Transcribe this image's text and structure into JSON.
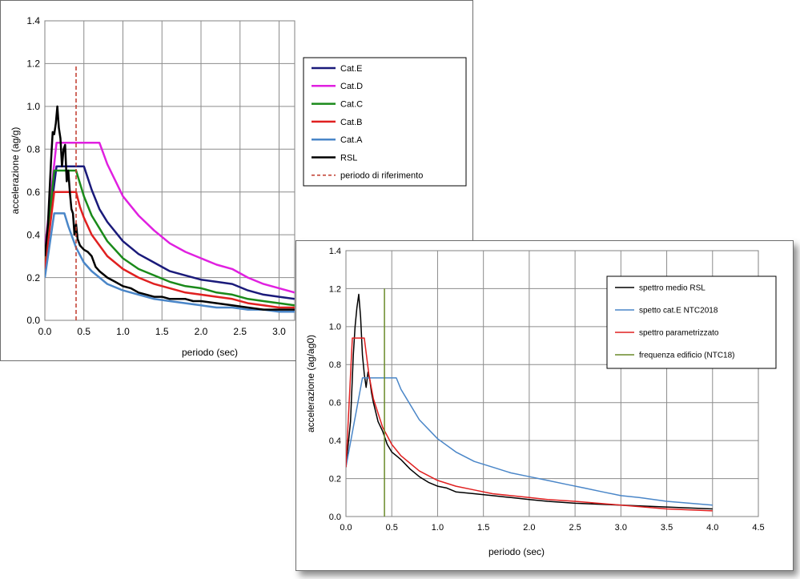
{
  "chart_data": [
    {
      "type": "line",
      "title": "",
      "xlabel": "periodo (sec)",
      "ylabel": "accelerazione (ag/g)",
      "xlim": [
        0,
        3.2
      ],
      "ylim": [
        0,
        1.4
      ],
      "x_ticks": [
        "0.0",
        "0.5",
        "1.0",
        "1.5",
        "2.0",
        "2.5",
        "3.0"
      ],
      "y_ticks": [
        "0.0",
        "0.2",
        "0.4",
        "0.6",
        "0.8",
        "1.0",
        "1.2",
        "1.4"
      ],
      "grid": true,
      "legend_position": "top-right",
      "series": [
        {
          "name": "Cat.E",
          "color": "#1a1a7a",
          "dash": false,
          "points": [
            [
              0,
              0.29
            ],
            [
              0.15,
              0.72
            ],
            [
              0.2,
              0.72
            ],
            [
              0.3,
              0.72
            ],
            [
              0.4,
              0.72
            ],
            [
              0.5,
              0.72
            ],
            [
              0.6,
              0.61
            ],
            [
              0.7,
              0.52
            ],
            [
              0.8,
              0.46
            ],
            [
              1.0,
              0.37
            ],
            [
              1.2,
              0.31
            ],
            [
              1.4,
              0.27
            ],
            [
              1.6,
              0.23
            ],
            [
              1.8,
              0.21
            ],
            [
              2.0,
              0.19
            ],
            [
              2.2,
              0.18
            ],
            [
              2.4,
              0.17
            ],
            [
              2.6,
              0.14
            ],
            [
              2.8,
              0.12
            ],
            [
              3.0,
              0.11
            ],
            [
              3.2,
              0.1
            ]
          ]
        },
        {
          "name": "Cat.D",
          "color": "#e020e0",
          "dash": false,
          "points": [
            [
              0,
              0.33
            ],
            [
              0.15,
              0.83
            ],
            [
              0.2,
              0.83
            ],
            [
              0.4,
              0.83
            ],
            [
              0.5,
              0.83
            ],
            [
              0.6,
              0.83
            ],
            [
              0.7,
              0.83
            ],
            [
              0.8,
              0.73
            ],
            [
              1.0,
              0.58
            ],
            [
              1.2,
              0.49
            ],
            [
              1.4,
              0.42
            ],
            [
              1.6,
              0.36
            ],
            [
              1.8,
              0.32
            ],
            [
              2.0,
              0.29
            ],
            [
              2.2,
              0.26
            ],
            [
              2.4,
              0.24
            ],
            [
              2.6,
              0.2
            ],
            [
              2.8,
              0.17
            ],
            [
              3.0,
              0.15
            ],
            [
              3.2,
              0.13
            ]
          ]
        },
        {
          "name": "Cat.C",
          "color": "#1a8a1a",
          "dash": false,
          "points": [
            [
              0,
              0.28
            ],
            [
              0.12,
              0.7
            ],
            [
              0.2,
              0.7
            ],
            [
              0.3,
              0.7
            ],
            [
              0.4,
              0.7
            ],
            [
              0.5,
              0.58
            ],
            [
              0.6,
              0.49
            ],
            [
              0.8,
              0.37
            ],
            [
              1.0,
              0.29
            ],
            [
              1.2,
              0.24
            ],
            [
              1.4,
              0.21
            ],
            [
              1.6,
              0.18
            ],
            [
              1.8,
              0.16
            ],
            [
              2.0,
              0.15
            ],
            [
              2.2,
              0.13
            ],
            [
              2.4,
              0.12
            ],
            [
              2.6,
              0.1
            ],
            [
              2.8,
              0.09
            ],
            [
              3.0,
              0.08
            ],
            [
              3.2,
              0.07
            ]
          ]
        },
        {
          "name": "Cat.B",
          "color": "#e02020",
          "dash": false,
          "points": [
            [
              0,
              0.24
            ],
            [
              0.12,
              0.6
            ],
            [
              0.2,
              0.6
            ],
            [
              0.3,
              0.6
            ],
            [
              0.4,
              0.6
            ],
            [
              0.45,
              0.53
            ],
            [
              0.5,
              0.48
            ],
            [
              0.6,
              0.4
            ],
            [
              0.8,
              0.3
            ],
            [
              1.0,
              0.24
            ],
            [
              1.2,
              0.2
            ],
            [
              1.4,
              0.17
            ],
            [
              1.6,
              0.15
            ],
            [
              1.8,
              0.13
            ],
            [
              2.0,
              0.12
            ],
            [
              2.2,
              0.11
            ],
            [
              2.4,
              0.1
            ],
            [
              2.6,
              0.08
            ],
            [
              2.8,
              0.07
            ],
            [
              3.0,
              0.06
            ],
            [
              3.2,
              0.06
            ]
          ]
        },
        {
          "name": "Cat.A",
          "color": "#4a86c8",
          "dash": false,
          "points": [
            [
              0,
              0.2
            ],
            [
              0.12,
              0.5
            ],
            [
              0.2,
              0.5
            ],
            [
              0.25,
              0.5
            ],
            [
              0.3,
              0.44
            ],
            [
              0.4,
              0.34
            ],
            [
              0.5,
              0.27
            ],
            [
              0.6,
              0.23
            ],
            [
              0.8,
              0.17
            ],
            [
              1.0,
              0.14
            ],
            [
              1.2,
              0.12
            ],
            [
              1.4,
              0.1
            ],
            [
              1.6,
              0.09
            ],
            [
              1.8,
              0.08
            ],
            [
              2.0,
              0.07
            ],
            [
              2.2,
              0.06
            ],
            [
              2.4,
              0.06
            ],
            [
              2.6,
              0.05
            ],
            [
              2.8,
              0.05
            ],
            [
              3.0,
              0.04
            ],
            [
              3.2,
              0.04
            ]
          ]
        },
        {
          "name": "RSL",
          "color": "#000000",
          "dash": false,
          "points": [
            [
              0,
              0.3
            ],
            [
              0.04,
              0.45
            ],
            [
              0.08,
              0.75
            ],
            [
              0.1,
              0.88
            ],
            [
              0.12,
              0.87
            ],
            [
              0.14,
              0.92
            ],
            [
              0.16,
              1.0
            ],
            [
              0.18,
              0.9
            ],
            [
              0.2,
              0.85
            ],
            [
              0.22,
              0.72
            ],
            [
              0.24,
              0.8
            ],
            [
              0.26,
              0.82
            ],
            [
              0.28,
              0.65
            ],
            [
              0.3,
              0.7
            ],
            [
              0.32,
              0.6
            ],
            [
              0.34,
              0.52
            ],
            [
              0.36,
              0.5
            ],
            [
              0.38,
              0.4
            ],
            [
              0.4,
              0.45
            ],
            [
              0.42,
              0.38
            ],
            [
              0.45,
              0.35
            ],
            [
              0.5,
              0.33
            ],
            [
              0.55,
              0.32
            ],
            [
              0.6,
              0.3
            ],
            [
              0.65,
              0.25
            ],
            [
              0.7,
              0.23
            ],
            [
              0.8,
              0.2
            ],
            [
              0.9,
              0.18
            ],
            [
              1.0,
              0.16
            ],
            [
              1.1,
              0.15
            ],
            [
              1.2,
              0.13
            ],
            [
              1.3,
              0.12
            ],
            [
              1.4,
              0.11
            ],
            [
              1.5,
              0.11
            ],
            [
              1.6,
              0.1
            ],
            [
              1.7,
              0.1
            ],
            [
              1.8,
              0.1
            ],
            [
              1.9,
              0.09
            ],
            [
              2.0,
              0.09
            ],
            [
              2.2,
              0.08
            ],
            [
              2.4,
              0.07
            ],
            [
              2.6,
              0.06
            ],
            [
              2.8,
              0.05
            ],
            [
              3.0,
              0.05
            ],
            [
              3.2,
              0.05
            ]
          ]
        },
        {
          "name": "periodo di riferimento",
          "color": "#c0392b",
          "dash": true,
          "points": [
            [
              0.4,
              0
            ],
            [
              0.4,
              1.19
            ]
          ]
        }
      ]
    },
    {
      "type": "line",
      "title": "",
      "xlabel": "periodo (sec)",
      "ylabel": "accelerazione (ag/ag0)",
      "xlim": [
        0,
        4.5
      ],
      "ylim": [
        0,
        1.4
      ],
      "x_ticks": [
        "0.0",
        "0.5",
        "1.0",
        "1.5",
        "2.0",
        "2.5",
        "3.0",
        "3.5",
        "4.0",
        "4.5"
      ],
      "y_ticks": [
        "0.0",
        "0.2",
        "0.4",
        "0.6",
        "0.8",
        "1.0",
        "1.2",
        "1.4"
      ],
      "grid": true,
      "legend_position": "top-right",
      "series": [
        {
          "name": "spettro medio RSL",
          "color": "#000000",
          "dash": false,
          "points": [
            [
              0,
              0.26
            ],
            [
              0.05,
              0.5
            ],
            [
              0.08,
              0.85
            ],
            [
              0.1,
              1.0
            ],
            [
              0.12,
              1.1
            ],
            [
              0.14,
              1.17
            ],
            [
              0.16,
              1.05
            ],
            [
              0.18,
              0.85
            ],
            [
              0.2,
              0.75
            ],
            [
              0.22,
              0.68
            ],
            [
              0.24,
              0.76
            ],
            [
              0.26,
              0.72
            ],
            [
              0.28,
              0.65
            ],
            [
              0.3,
              0.6
            ],
            [
              0.35,
              0.5
            ],
            [
              0.4,
              0.45
            ],
            [
              0.45,
              0.38
            ],
            [
              0.5,
              0.34
            ],
            [
              0.55,
              0.32
            ],
            [
              0.6,
              0.3
            ],
            [
              0.7,
              0.25
            ],
            [
              0.8,
              0.21
            ],
            [
              0.9,
              0.18
            ],
            [
              1.0,
              0.16
            ],
            [
              1.1,
              0.15
            ],
            [
              1.2,
              0.13
            ],
            [
              1.4,
              0.12
            ],
            [
              1.6,
              0.11
            ],
            [
              1.8,
              0.1
            ],
            [
              2.0,
              0.09
            ],
            [
              2.2,
              0.08
            ],
            [
              2.5,
              0.07
            ],
            [
              3.0,
              0.06
            ],
            [
              3.5,
              0.05
            ],
            [
              4.0,
              0.04
            ]
          ]
        },
        {
          "name": "spetto cat.E NTC2018",
          "color": "#4a86c8",
          "dash": false,
          "points": [
            [
              0,
              0.26
            ],
            [
              0.18,
              0.73
            ],
            [
              0.3,
              0.73
            ],
            [
              0.4,
              0.73
            ],
            [
              0.5,
              0.73
            ],
            [
              0.55,
              0.73
            ],
            [
              0.6,
              0.67
            ],
            [
              0.8,
              0.51
            ],
            [
              1.0,
              0.41
            ],
            [
              1.2,
              0.34
            ],
            [
              1.4,
              0.29
            ],
            [
              1.6,
              0.26
            ],
            [
              1.8,
              0.23
            ],
            [
              2.0,
              0.21
            ],
            [
              2.2,
              0.19
            ],
            [
              2.4,
              0.17
            ],
            [
              2.6,
              0.15
            ],
            [
              2.8,
              0.13
            ],
            [
              3.0,
              0.11
            ],
            [
              3.2,
              0.1
            ],
            [
              3.5,
              0.08
            ],
            [
              4.0,
              0.06
            ]
          ]
        },
        {
          "name": "spettro parametrizzato",
          "color": "#e02020",
          "dash": false,
          "points": [
            [
              0,
              0.26
            ],
            [
              0.07,
              0.94
            ],
            [
              0.2,
              0.94
            ],
            [
              0.25,
              0.75
            ],
            [
              0.3,
              0.62
            ],
            [
              0.4,
              0.47
            ],
            [
              0.5,
              0.38
            ],
            [
              0.6,
              0.32
            ],
            [
              0.8,
              0.24
            ],
            [
              1.0,
              0.19
            ],
            [
              1.2,
              0.16
            ],
            [
              1.4,
              0.14
            ],
            [
              1.6,
              0.12
            ],
            [
              1.8,
              0.11
            ],
            [
              2.0,
              0.1
            ],
            [
              2.2,
              0.09
            ],
            [
              2.5,
              0.08
            ],
            [
              3.0,
              0.06
            ],
            [
              3.5,
              0.04
            ],
            [
              4.0,
              0.03
            ]
          ]
        },
        {
          "name": "frequenza edificio (NTC18)",
          "color": "#6a8a2a",
          "dash": false,
          "points": [
            [
              0.42,
              0
            ],
            [
              0.42,
              1.2
            ]
          ]
        }
      ]
    }
  ]
}
